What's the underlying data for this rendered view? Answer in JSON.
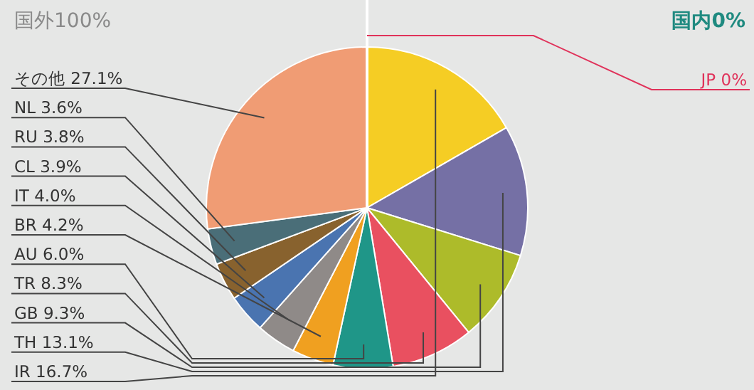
{
  "chart_data": {
    "type": "pie",
    "categories": [
      "JP",
      "IR",
      "TH",
      "GB",
      "TR",
      "AU",
      "BR",
      "IT",
      "CL",
      "RU",
      "NL",
      "その他"
    ],
    "values": [
      0,
      16.7,
      13.1,
      9.3,
      8.3,
      6.0,
      4.2,
      4.0,
      3.9,
      3.8,
      3.6,
      27.1
    ],
    "value_labels": [
      "0%",
      "16.7%",
      "13.1%",
      "9.3%",
      "8.3%",
      "6.0%",
      "4.2%",
      "4.0%",
      "3.9%",
      "3.8%",
      "3.6%",
      "27.1%"
    ],
    "colors": [
      "#e0325a",
      "#f5cd24",
      "#7570a5",
      "#adbb2a",
      "#e95060",
      "#1f9688",
      "#f0a020",
      "#8f8a88",
      "#4a74b0",
      "#88622e",
      "#4a6e78",
      "#f09c74"
    ],
    "annotations": [
      "国外100%",
      "国内0%"
    ]
  }
}
